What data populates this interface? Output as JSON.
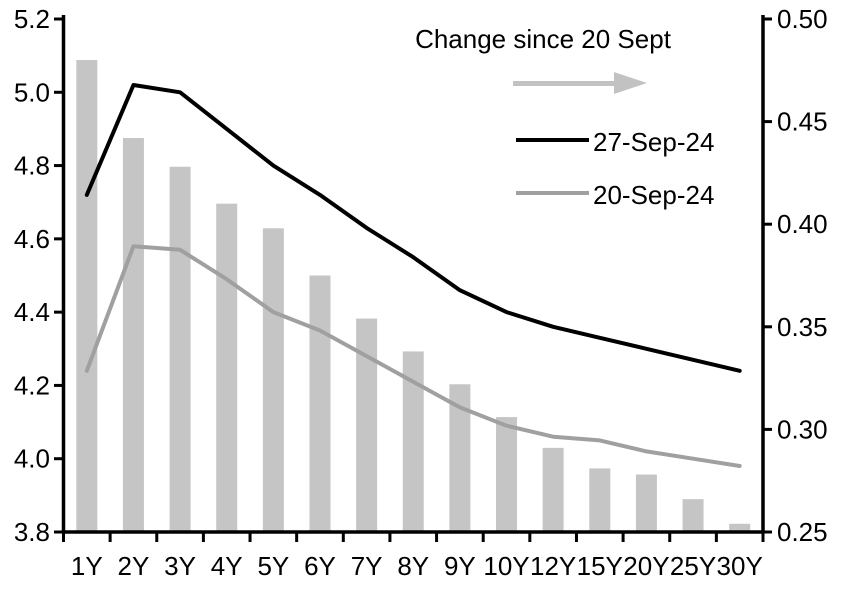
{
  "chart_data": {
    "type": "combo",
    "categories": [
      "1Y",
      "2Y",
      "3Y",
      "4Y",
      "5Y",
      "6Y",
      "7Y",
      "8Y",
      "9Y",
      "10Y",
      "12Y",
      "15Y",
      "20Y",
      "25Y",
      "30Y"
    ],
    "series": [
      {
        "name": "Change since 20 Sept",
        "type": "bar",
        "axis": "right",
        "values": [
          0.48,
          0.442,
          0.428,
          0.41,
          0.398,
          0.375,
          0.354,
          0.338,
          0.322,
          0.306,
          0.291,
          0.281,
          0.278,
          0.266,
          0.254
        ],
        "color": "#c5c5c5"
      },
      {
        "name": "27-Sep-24",
        "type": "line",
        "axis": "left",
        "values": [
          4.72,
          5.02,
          5.0,
          4.9,
          4.8,
          4.72,
          4.63,
          4.55,
          4.46,
          4.4,
          4.36,
          4.33,
          4.3,
          4.27,
          4.24
        ],
        "color": "#000000"
      },
      {
        "name": "20-Sep-24",
        "type": "line",
        "axis": "left",
        "values": [
          4.24,
          4.58,
          4.57,
          4.49,
          4.4,
          4.35,
          4.28,
          4.21,
          4.14,
          4.09,
          4.06,
          4.05,
          4.02,
          4.0,
          3.98
        ],
        "color": "#a0a0a0"
      }
    ],
    "left_axis": {
      "min": 3.8,
      "max": 5.2,
      "tick_labels": [
        "3.8",
        "4.0",
        "4.2",
        "4.4",
        "4.6",
        "4.8",
        "5.0",
        "5.2"
      ]
    },
    "right_axis": {
      "min": 0.25,
      "max": 0.5,
      "tick_labels": [
        "0.25",
        "0.30",
        "0.35",
        "0.40",
        "0.45",
        "0.50"
      ]
    },
    "grid": false,
    "legend": {
      "position": "top-center-inside",
      "title": "Change since 20 Sept",
      "arrow_color": "#c2c2c2",
      "items": [
        {
          "label": "27-Sep-24",
          "color": "#000000"
        },
        {
          "label": "20-Sep-24",
          "color": "#a0a0a0"
        }
      ]
    }
  }
}
